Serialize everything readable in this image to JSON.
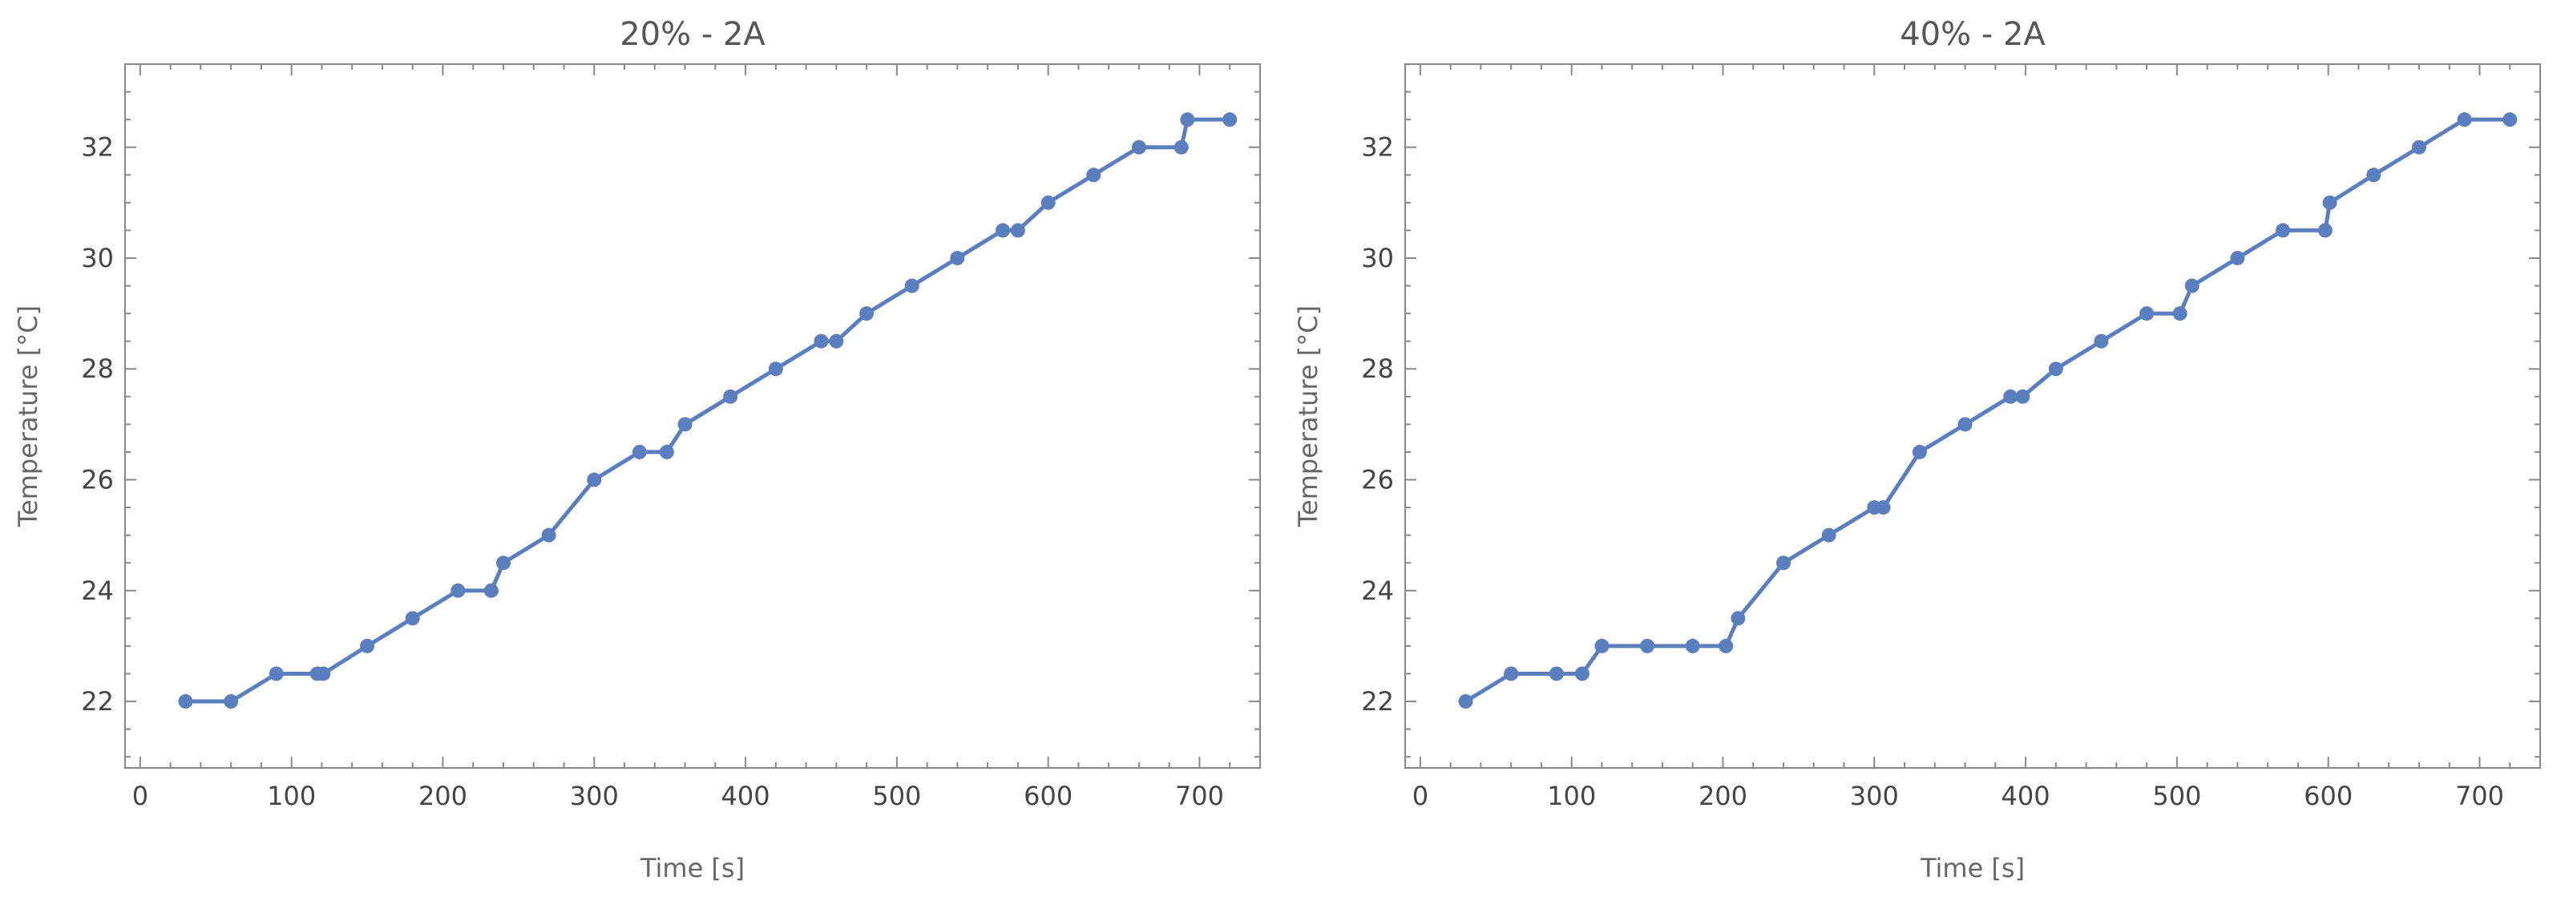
{
  "chart_data": [
    {
      "type": "line",
      "title": "20% - 2A",
      "xlabel": "Time [s]",
      "ylabel": "Temperature  [°C]",
      "xlim": [
        -10,
        740
      ],
      "ylim": [
        20.8,
        33.5
      ],
      "xticks": [
        0,
        100,
        200,
        300,
        400,
        500,
        600,
        700
      ],
      "yticks": [
        22,
        24,
        26,
        28,
        30,
        32
      ],
      "ytick_labels": [
        "22",
        "24",
        "26",
        "28",
        "30",
        "32"
      ],
      "grid": false,
      "color": "#5b7fbe",
      "x": [
        30,
        60,
        90,
        117,
        121,
        150,
        180,
        210,
        232,
        240,
        270,
        300,
        330,
        348,
        360,
        390,
        420,
        450,
        460,
        480,
        510,
        540,
        570,
        580,
        600,
        630,
        660,
        688,
        692,
        720
      ],
      "y": [
        22.0,
        22.0,
        22.5,
        22.5,
        22.5,
        23.0,
        23.5,
        24.0,
        24.0,
        24.5,
        25.0,
        26.0,
        26.5,
        26.5,
        27.0,
        27.5,
        28.0,
        28.5,
        28.5,
        29.0,
        29.5,
        30.0,
        30.5,
        30.5,
        31.0,
        31.5,
        32.0,
        32.0,
        32.5,
        32.5
      ]
    },
    {
      "type": "line",
      "title": "40% - 2A",
      "xlabel": "Time [s]",
      "ylabel": "Temperature  [°C]",
      "xlim": [
        -10,
        740
      ],
      "ylim": [
        20.8,
        33.5
      ],
      "xticks": [
        0,
        100,
        200,
        300,
        400,
        500,
        600,
        700
      ],
      "yticks": [
        22,
        24,
        26,
        28,
        30,
        32
      ],
      "ytick_labels": [
        "22",
        "24",
        "26",
        "28",
        "30",
        "32"
      ],
      "grid": false,
      "color": "#5b7fbe",
      "x": [
        30,
        60,
        90,
        107,
        120,
        150,
        180,
        202,
        210,
        240,
        270,
        300,
        306,
        330,
        360,
        390,
        398,
        420,
        450,
        480,
        502,
        510,
        540,
        570,
        598,
        601,
        630,
        660,
        690,
        720
      ],
      "y": [
        22.0,
        22.5,
        22.5,
        22.5,
        23.0,
        23.0,
        23.0,
        23.0,
        23.5,
        24.5,
        25.0,
        25.5,
        25.5,
        26.5,
        27.0,
        27.5,
        27.5,
        28.0,
        28.5,
        29.0,
        29.0,
        29.5,
        30.0,
        30.5,
        30.5,
        31.0,
        31.5,
        32.0,
        32.5,
        32.5
      ]
    }
  ]
}
